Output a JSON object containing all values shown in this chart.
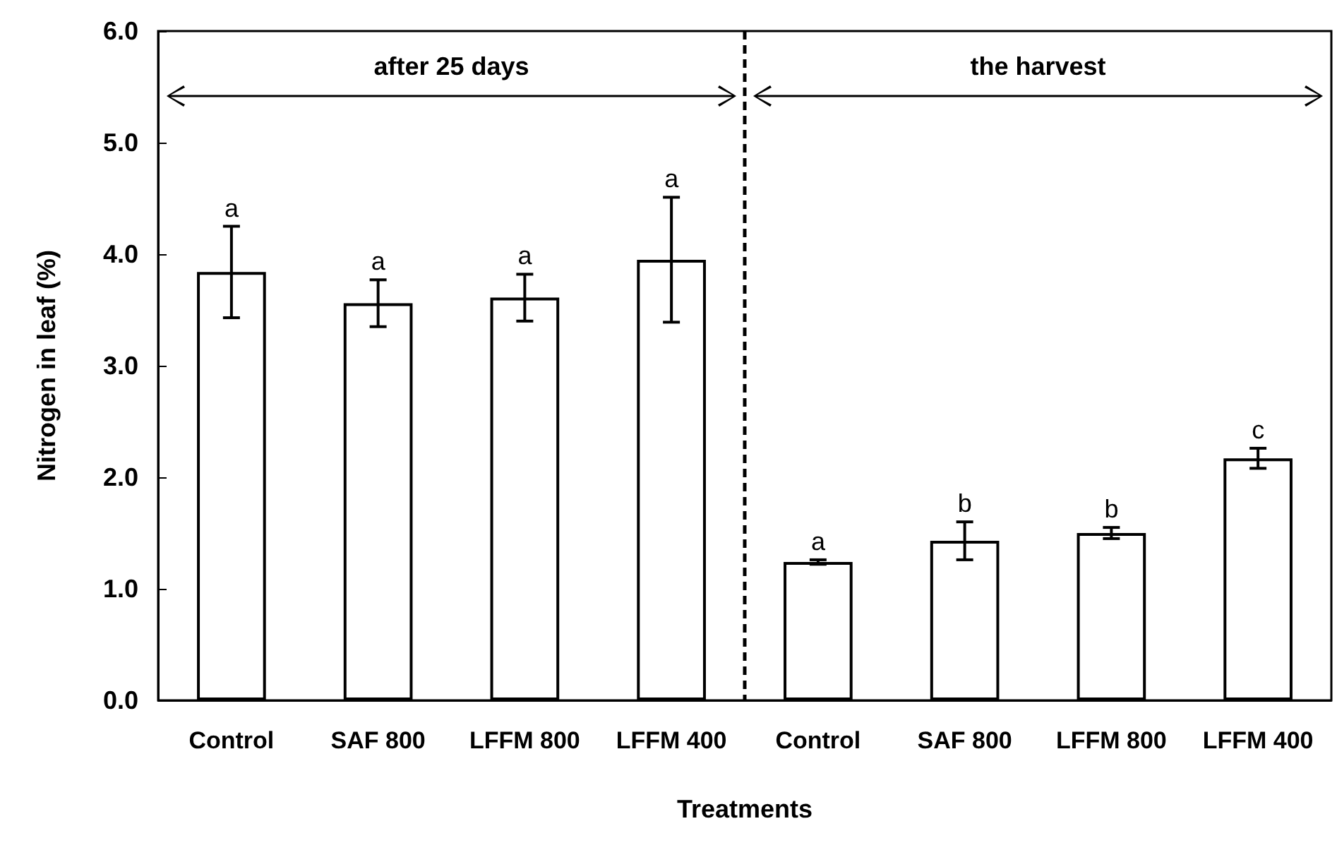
{
  "chart_data": {
    "type": "bar",
    "categories": [
      "Control",
      "SAF 800",
      "LFFM 800",
      "LFFM 400",
      "Control",
      "SAF 800",
      "LFFM 800",
      "LFFM 400"
    ],
    "values": [
      3.84,
      3.56,
      3.61,
      3.95,
      1.24,
      1.43,
      1.5,
      2.17
    ],
    "errors": [
      0.41,
      0.21,
      0.21,
      0.56,
      0.02,
      0.17,
      0.05,
      0.09
    ],
    "value_labels": [
      "a",
      "a",
      "a",
      "a",
      "a",
      "b",
      "b",
      "c"
    ],
    "color": "#ffffff",
    "xlabel": "Treatments",
    "ylabel": "Nitrogen in leaf (%)",
    "ylim": [
      0,
      6
    ],
    "yticks": [
      {
        "value": 0,
        "label": "0.0"
      },
      {
        "value": 1,
        "label": "1.0"
      },
      {
        "value": 2,
        "label": "2.0"
      },
      {
        "value": 3,
        "label": "3.0"
      },
      {
        "value": 4,
        "label": "4.0"
      },
      {
        "value": 5,
        "label": "5.0"
      },
      {
        "value": 6,
        "label": "6.0"
      }
    ],
    "annotations": [
      "after 25 days",
      "the harvest"
    ],
    "grid": false
  }
}
